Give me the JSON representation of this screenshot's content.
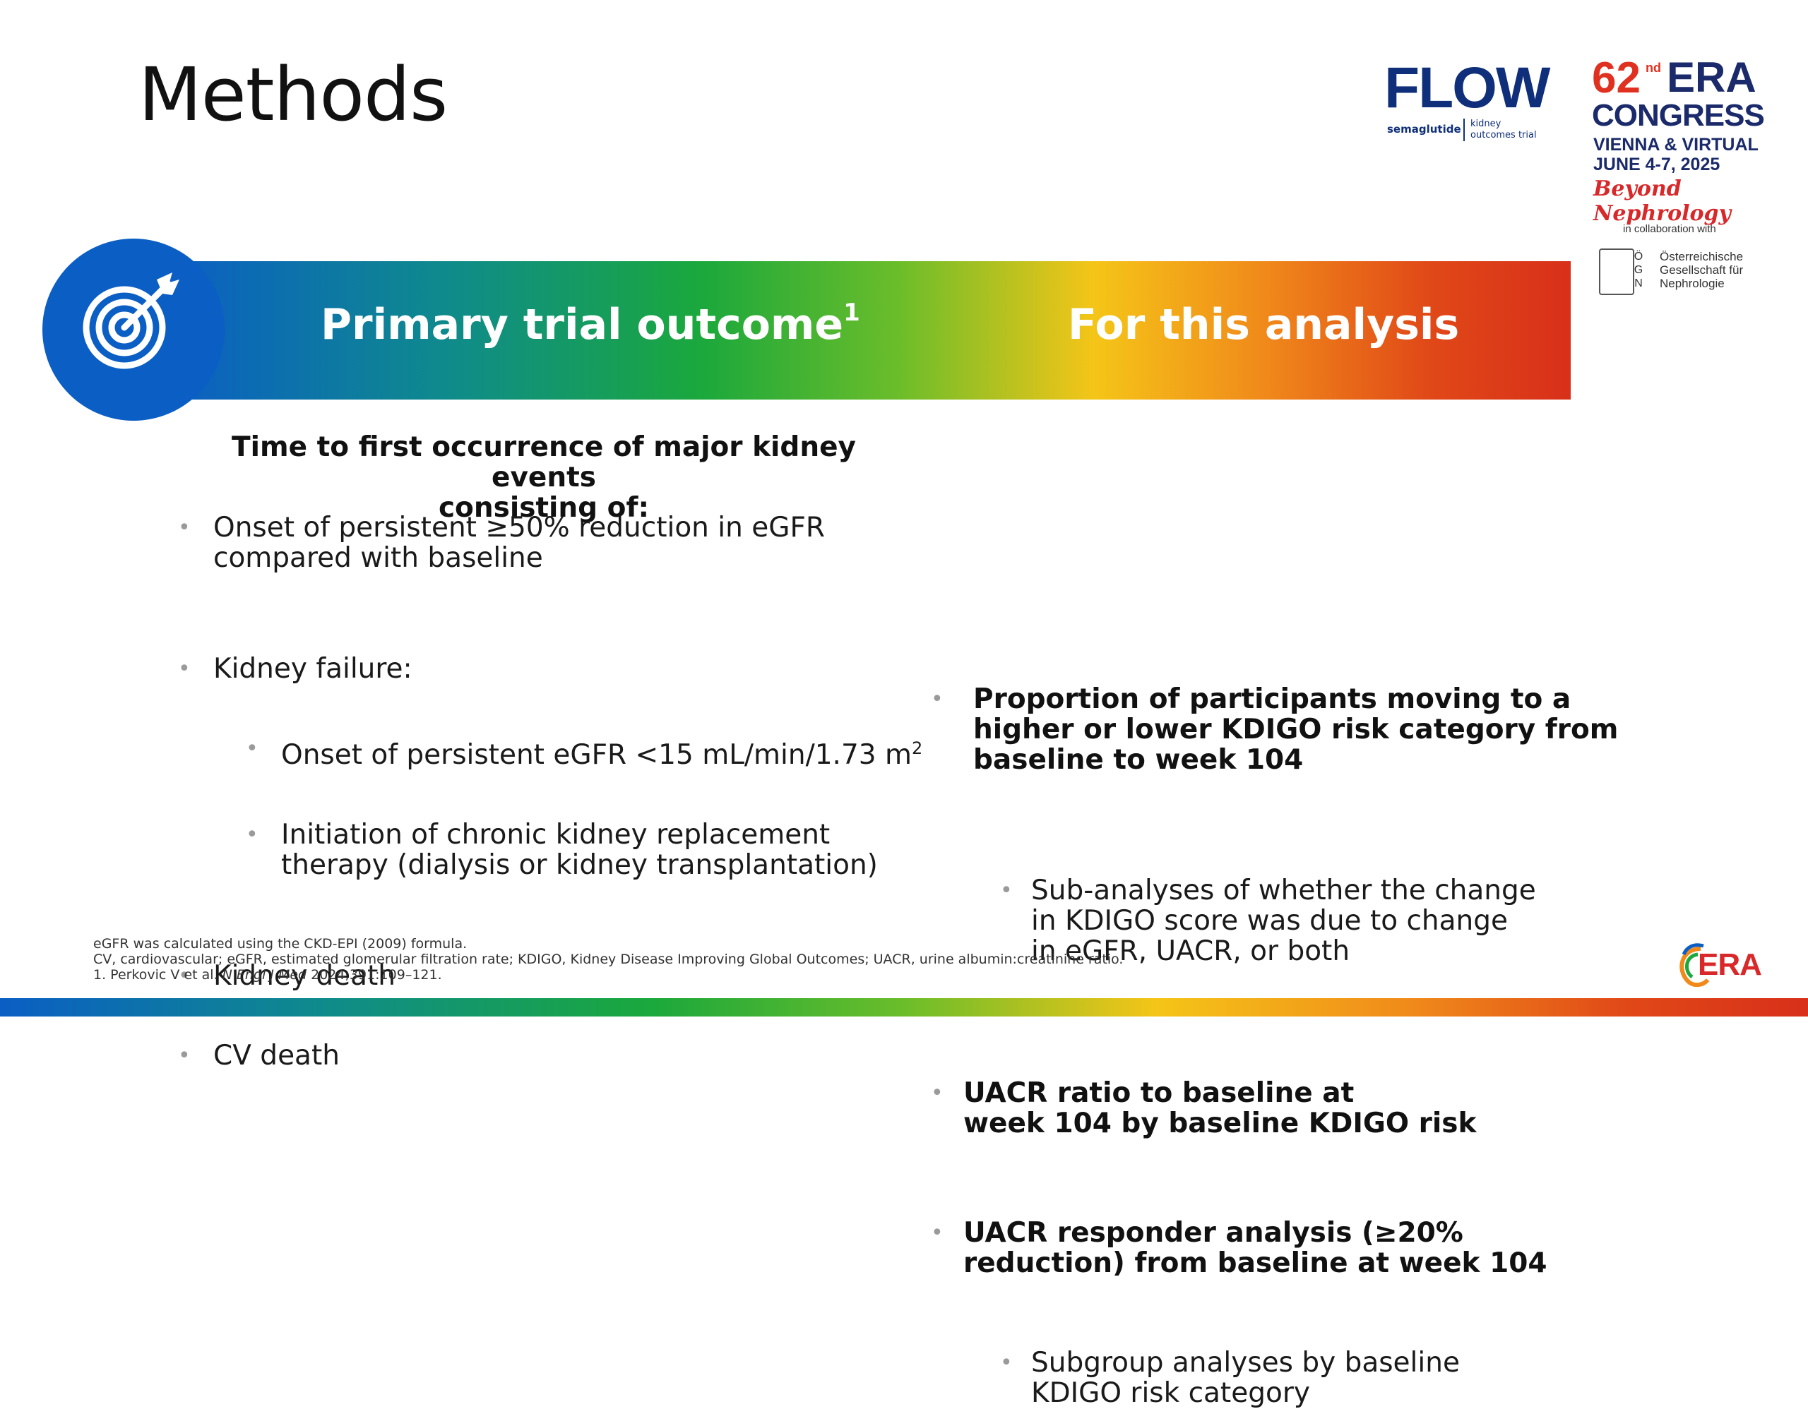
{
  "slide": {
    "title": "Methods"
  },
  "logos": {
    "flow": {
      "word": "FLOW",
      "sub_left": "semaglutide",
      "sub_right_line1": "kidney",
      "sub_right_line2": "outcomes trial"
    },
    "era_congress": {
      "number": "62",
      "ordinal": "nd",
      "era": "ERA",
      "congress": "CONGRESS",
      "location": "VIENNA & VIRTUAL",
      "dates": "JUNE 4-7, 2025",
      "tagline": "Beyond Nephrology",
      "collab": "in collaboration with",
      "oegn_letters": [
        "Ö",
        "G",
        "N"
      ],
      "oegn_line1": "Österreichische",
      "oegn_line2": "Gesellschaft für",
      "oegn_line3": "Nephrologie"
    },
    "era_bottom": "ERA"
  },
  "banner": {
    "left_heading": "Primary trial outcome",
    "left_sup": "1",
    "right_heading": "For this analysis",
    "colors": [
      "#0b5ec4",
      "#1ba83c",
      "#f5c518",
      "#d8301a"
    ]
  },
  "left": {
    "lead_line1": "Time to first occurrence of major kidney events",
    "lead_line2": "consisting of:",
    "b1_line1": "Onset of persistent ≥50% reduction in eGFR",
    "b1_line2": "compared with baseline",
    "b2": "Kidney failure:",
    "b2a_text": "Onset of persistent eGFR <15 mL/min/1.73 m",
    "b2a_sup": "2",
    "b2b_line1": "Initiation of chronic kidney replacement",
    "b2b_line2": "therapy (dialysis or kidney transplantation)",
    "b3": "Kidney death",
    "b4": "CV death"
  },
  "right": {
    "r1_line1": "Proportion of participants moving to a",
    "r1_line2": "higher or lower KDIGO risk category from",
    "r1_line3": "baseline to week 104",
    "r1a_line1": "Sub-analyses of whether the change",
    "r1a_line2": "in KDIGO score was due to change",
    "r1a_line3": "in eGFR, UACR, or both",
    "r2_line1": "UACR ratio to baseline at",
    "r2_line2": "week 104 by baseline KDIGO risk",
    "r3_line1": "UACR responder analysis (≥20%",
    "r3_line2": "reduction) from baseline at week 104",
    "r3a_line1": "Subgroup analyses by baseline",
    "r3a_line2": "KDIGO risk category"
  },
  "footnotes": {
    "line1": "eGFR was calculated using the CKD-EPI (2009) formula.",
    "line2": "CV, cardiovascular; eGFR, estimated glomerular filtration rate; KDIGO, Kidney Disease Improving Global Outcomes; UACR, urine albumin:creatinine ratio.",
    "line3_pre": "1. Perkovic V et al. ",
    "line3_journal": "N Engl J Med",
    "line3_post": " 2024;391:109–121."
  }
}
